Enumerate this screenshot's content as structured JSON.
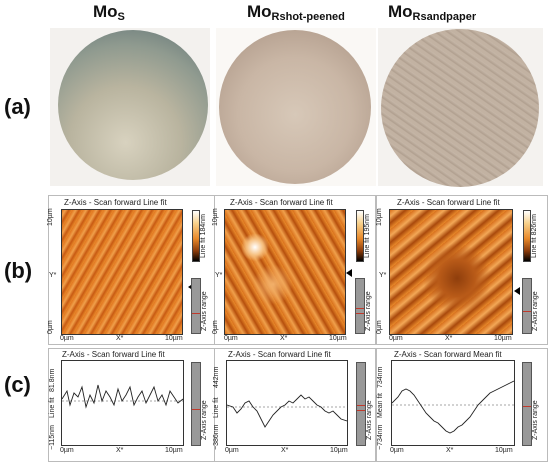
{
  "panel_labels": {
    "a": "(a)",
    "b": "(b)",
    "c": "(c)"
  },
  "samples": [
    {
      "title_main": "Mo",
      "title_sub": "S"
    },
    {
      "title_main": "Mo",
      "title_sub": "Rshot-peened"
    },
    {
      "title_main": "Mo",
      "title_sub": "Rsandpaper"
    }
  ],
  "afm": [
    {
      "header": "Z-Axis - Scan forward   Line fit",
      "y_top": "10µm",
      "y_mid": "Y*",
      "y_bot": "0µm",
      "x_left": "0µm",
      "x_mid": "X*",
      "x_right": "10µm",
      "cbar_label": "Line fit 184nm",
      "z_label": "Z-Axis range"
    },
    {
      "header": "Z-Axis - Scan forward   Line fit",
      "y_top": "10µm",
      "y_mid": "Y*",
      "y_bot": "0µm",
      "x_left": "0µm",
      "x_mid": "X*",
      "x_right": "10µm",
      "cbar_label": "Line fit 195nm",
      "z_label": "Z-Axis range"
    },
    {
      "header": "Z-Axis - Scan forward   Line fit",
      "y_top": "10µm",
      "y_mid": "Y*",
      "y_bot": "0µm",
      "x_left": "0µm",
      "x_mid": "X*",
      "x_right": "10µm",
      "cbar_label": "Line fit 826nm",
      "z_label": "Z-Axis range"
    }
  ],
  "profiles": [
    {
      "header": "Z-Axis - Scan forward   Line fit",
      "y_top": "81.8nm",
      "y_axis": "Line fit",
      "y_bot": "−115nm",
      "x_left": "0µm",
      "x_mid": "X*",
      "x_right": "10µm",
      "z_label": "Z-Axis range"
    },
    {
      "header": "Z-Axis - Scan forward   Line fit",
      "y_top": "442nm",
      "y_axis": "Line fit",
      "y_bot": "−386nm",
      "x_left": "0µm",
      "x_mid": "X*",
      "x_right": "10µm",
      "z_label": "Z-Axis range"
    },
    {
      "header": "Z-Axis - Scan forward   Mean fit",
      "y_top": "734nm",
      "y_axis": "Mean fit",
      "y_bot": "−734nm",
      "x_left": "0µm",
      "x_mid": "X*",
      "x_right": "10µm",
      "z_label": "Z-Axis range"
    }
  ]
}
